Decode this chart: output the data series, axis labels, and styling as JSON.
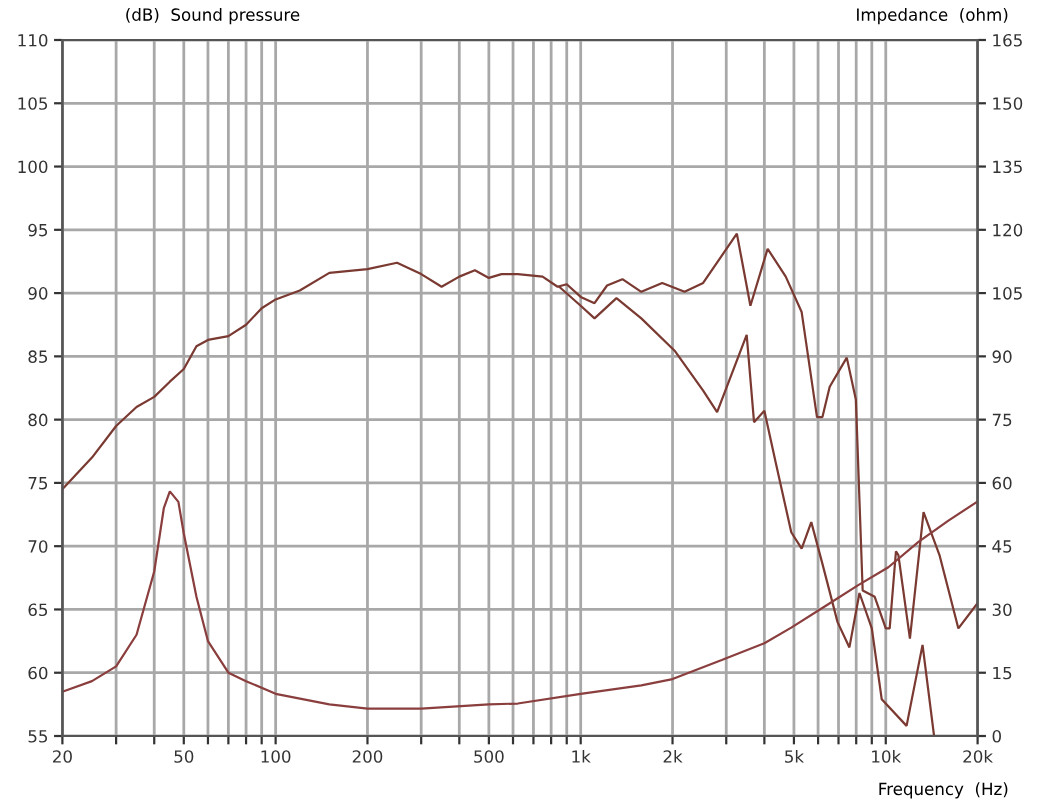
{
  "chart_data": {
    "type": "line",
    "log": "x",
    "grid": true,
    "marker": "none",
    "line_style": "solid",
    "ylabel": "(dB)  Sound pressure",
    "y2label": "Impedance  (ohm)",
    "xlabel": "Frequency  (Hz)",
    "xlim": [
      20,
      20000
    ],
    "ylim": [
      55,
      110
    ],
    "y2lim": [
      0,
      165
    ],
    "xticks": [
      20,
      {
        "value": 30,
        "label": null
      },
      {
        "value": 40,
        "label": null
      },
      50,
      {
        "value": 60,
        "label": null
      },
      {
        "value": 70,
        "label": null
      },
      {
        "value": 80,
        "label": null
      },
      {
        "value": 90,
        "label": null
      },
      100,
      200,
      {
        "value": 300,
        "label": null
      },
      {
        "value": 400,
        "label": null
      },
      500,
      {
        "value": 600,
        "label": null
      },
      {
        "value": 700,
        "label": null
      },
      {
        "value": 800,
        "label": null
      },
      {
        "value": 900,
        "label": null
      },
      {
        "value": 1000,
        "label": "1k"
      },
      {
        "value": 2000,
        "label": "2k"
      },
      {
        "value": 3000,
        "label": null
      },
      {
        "value": 4000,
        "label": null
      },
      {
        "value": 5000,
        "label": "5k"
      },
      {
        "value": 6000,
        "label": null
      },
      {
        "value": 7000,
        "label": null
      },
      {
        "value": 8000,
        "label": null
      },
      {
        "value": 9000,
        "label": null
      },
      {
        "value": 10000,
        "label": "10k"
      },
      {
        "value": 20000,
        "label": "20k"
      }
    ],
    "yticks": [
      55,
      60,
      65,
      70,
      75,
      80,
      85,
      90,
      95,
      100,
      105,
      110
    ],
    "y2ticks": [
      0,
      15,
      30,
      45,
      60,
      75,
      90,
      105,
      120,
      135,
      150,
      165
    ],
    "series": [
      {
        "color": "#7a3a32",
        "x": [
          20,
          25,
          30,
          35,
          40,
          45,
          50,
          55,
          60,
          70,
          80,
          90,
          100,
          120,
          150,
          200,
          250,
          300,
          350,
          400,
          450,
          500,
          550,
          622,
          750,
          840,
          900,
          1000,
          1110,
          1220,
          1370,
          1580,
          1850,
          2190,
          2520,
          3250,
          3600,
          4100,
          4700,
          5300,
          5950,
          6200,
          6550,
          7450,
          7980,
          8400,
          9200,
          10000,
          10300,
          10800,
          11000,
          12000,
          13300,
          15000,
          17300,
          20000
        ],
        "values": [
          74.5,
          77,
          79.5,
          81,
          81.8,
          83,
          84,
          85.8,
          86.3,
          86.6,
          87.5,
          88.8,
          89.5,
          90.2,
          91.6,
          91.9,
          92.4,
          91.5,
          90.5,
          91.3,
          91.8,
          91.2,
          91.5,
          91.5,
          91.3,
          90.5,
          90.7,
          89.7,
          89.2,
          90.6,
          91.1,
          90.1,
          90.8,
          90.1,
          90.8,
          94.7,
          89,
          93.5,
          91.3,
          88.5,
          80.2,
          80.2,
          82.6,
          84.9,
          81.6,
          66.5,
          66,
          63.5,
          63.5,
          69.6,
          69.3,
          62.7,
          72.7,
          69.3,
          63.5,
          65.5
        ]
      },
      {
        "color": "#7a3a32",
        "x": [
          850,
          1000,
          1110,
          1310,
          1580,
          2040,
          2520,
          2800,
          3500,
          3700,
          4000,
          4350,
          4900,
          5300,
          5700,
          6200,
          6950,
          7600,
          8200,
          9000,
          9700,
          11700,
          13200,
          14400
        ],
        "values": [
          90.5,
          89,
          88,
          89.6,
          88,
          85.4,
          82.3,
          80.6,
          86.7,
          79.8,
          80.7,
          76.7,
          71.1,
          69.8,
          71.9,
          68.6,
          64,
          62,
          66.3,
          63.5,
          57.9,
          55.8,
          62.2,
          55
        ]
      },
      {
        "color": "#8a3e3e",
        "axis": "y2",
        "x": [
          20,
          25,
          30,
          35,
          40,
          43,
          45,
          48,
          50,
          55,
          60,
          70,
          80,
          100,
          150,
          200,
          300,
          500,
          622,
          1000,
          1580,
          2000,
          2900,
          4000,
          4900,
          6400,
          8100,
          10200,
          12800,
          16000,
          20000
        ],
        "values": [
          10.5,
          13,
          16.5,
          24,
          39,
          54,
          58,
          55.5,
          48,
          33,
          22.5,
          15,
          13,
          10,
          7.5,
          6.5,
          6.5,
          7.5,
          7.7,
          10,
          12,
          13.5,
          18,
          22,
          25.7,
          31,
          35.7,
          40,
          46,
          51,
          55.6
        ]
      }
    ]
  }
}
